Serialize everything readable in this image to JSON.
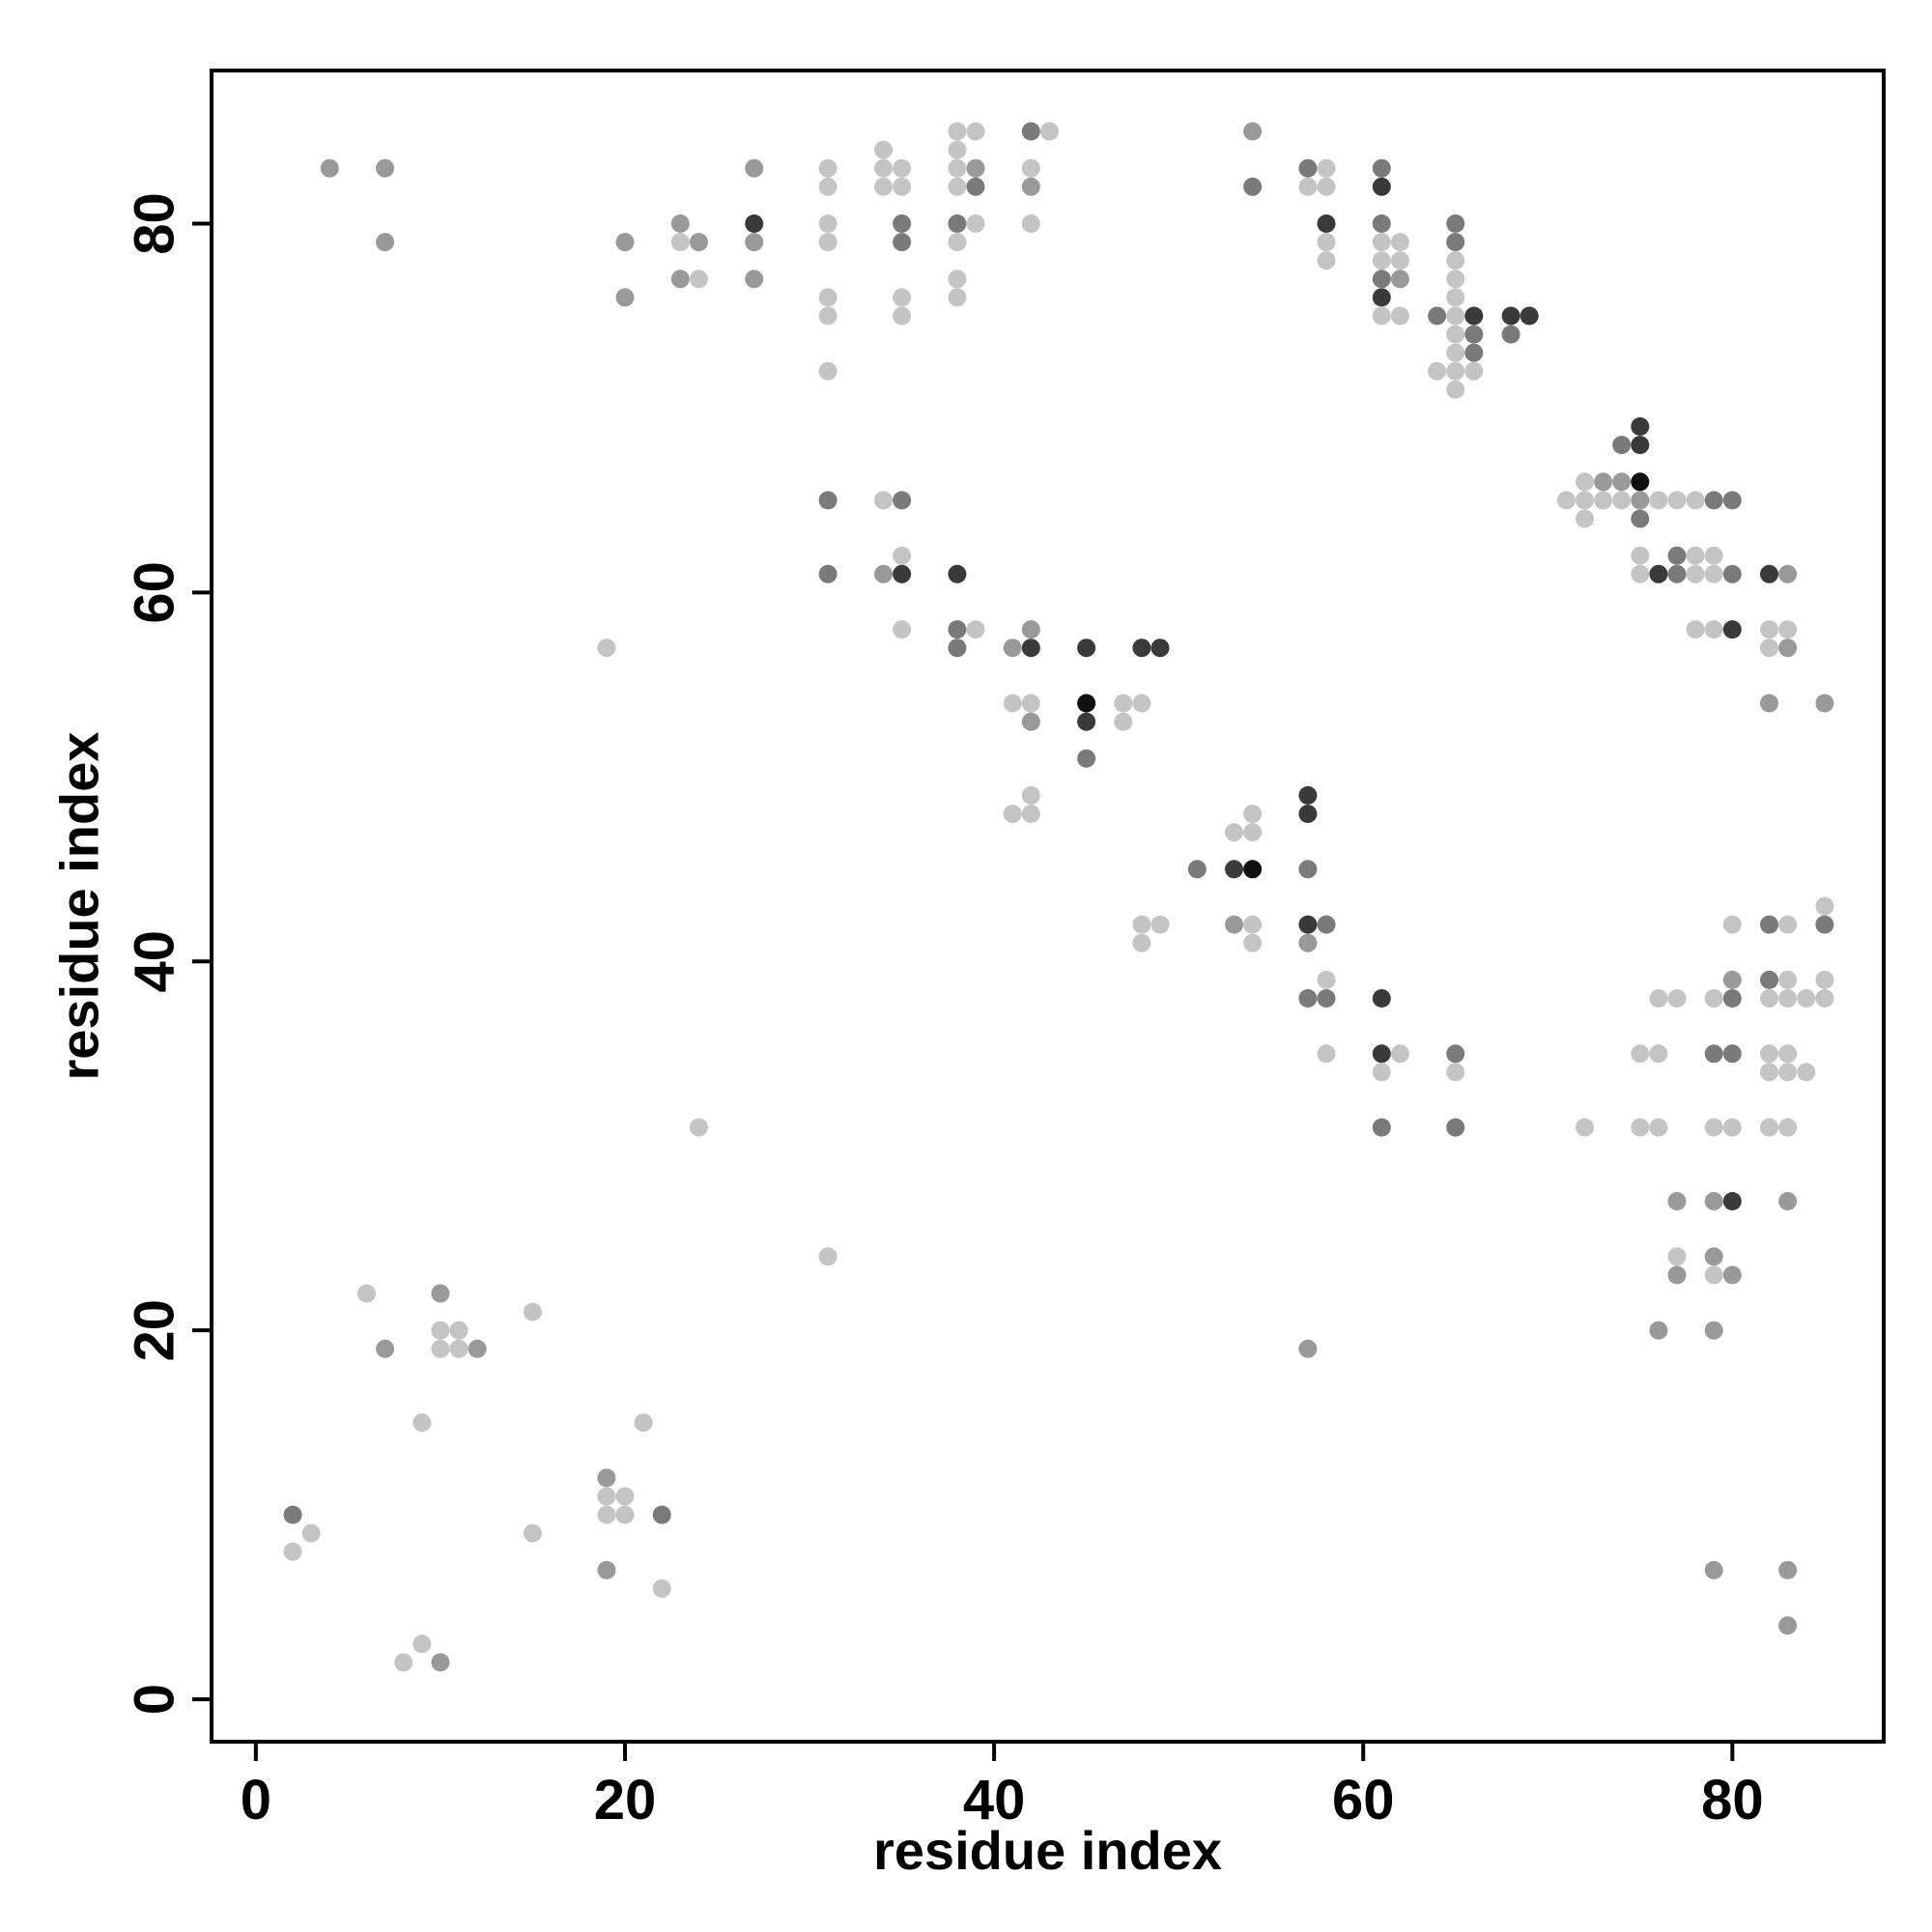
{
  "chart_data": {
    "type": "scatter",
    "title": "",
    "xlabel": "residue index",
    "ylabel": "residue index",
    "xlim": [
      -2.4,
      88.2
    ],
    "ylim": [
      -2.3,
      88.3
    ],
    "xticks": [
      0,
      20,
      40,
      60,
      80
    ],
    "yticks": [
      0,
      20,
      40,
      60,
      80
    ],
    "grid": false,
    "legend": "none",
    "color_scale": {
      "1": "#c4c4c4",
      "2": "#999999",
      "3": "#7a7a7a",
      "4": "#3a3a3a",
      "5": "#0f0f0f"
    },
    "points": [
      [
        4,
        83,
        2
      ],
      [
        7,
        83,
        2
      ],
      [
        7,
        79,
        2
      ],
      [
        2,
        10,
        3
      ],
      [
        2,
        8,
        1
      ],
      [
        3,
        9,
        1
      ],
      [
        6,
        22,
        1
      ],
      [
        7,
        19,
        2
      ],
      [
        8,
        2,
        1
      ],
      [
        9,
        3,
        1
      ],
      [
        10,
        2,
        2
      ],
      [
        9,
        15,
        1
      ],
      [
        10,
        22,
        2
      ],
      [
        10,
        20,
        1
      ],
      [
        11,
        20,
        1
      ],
      [
        10,
        19,
        1
      ],
      [
        11,
        19,
        1
      ],
      [
        12,
        19,
        2
      ],
      [
        15,
        21,
        1
      ],
      [
        15,
        9,
        1
      ],
      [
        19,
        12,
        2
      ],
      [
        19,
        11,
        1
      ],
      [
        20,
        11,
        1
      ],
      [
        19,
        10,
        1
      ],
      [
        20,
        10,
        1
      ],
      [
        22,
        10,
        3
      ],
      [
        19,
        7,
        2
      ],
      [
        21,
        15,
        1
      ],
      [
        22,
        6,
        1
      ],
      [
        19,
        57,
        1
      ],
      [
        24,
        31,
        1
      ],
      [
        20,
        79,
        2
      ],
      [
        20,
        76,
        2
      ],
      [
        23,
        80,
        2
      ],
      [
        23,
        79,
        1
      ],
      [
        24,
        79,
        2
      ],
      [
        23,
        77,
        2
      ],
      [
        24,
        77,
        1
      ],
      [
        27,
        83,
        2
      ],
      [
        27,
        80,
        4
      ],
      [
        27,
        79,
        2
      ],
      [
        27,
        77,
        2
      ],
      [
        31,
        83,
        1
      ],
      [
        31,
        82,
        1
      ],
      [
        31,
        80,
        1
      ],
      [
        31,
        79,
        1
      ],
      [
        31,
        76,
        1
      ],
      [
        31,
        75,
        1
      ],
      [
        31,
        72,
        1
      ],
      [
        31,
        65,
        3
      ],
      [
        31,
        61,
        3
      ],
      [
        31,
        24,
        1
      ],
      [
        34,
        84,
        1
      ],
      [
        34,
        83,
        1
      ],
      [
        35,
        83,
        1
      ],
      [
        34,
        82,
        1
      ],
      [
        35,
        82,
        1
      ],
      [
        35,
        80,
        3
      ],
      [
        35,
        79,
        3
      ],
      [
        35,
        76,
        1
      ],
      [
        35,
        75,
        1
      ],
      [
        34,
        65,
        1
      ],
      [
        35,
        65,
        3
      ],
      [
        35,
        62,
        1
      ],
      [
        34,
        61,
        2
      ],
      [
        35,
        61,
        4
      ],
      [
        35,
        58,
        1
      ],
      [
        38,
        85,
        1
      ],
      [
        39,
        85,
        1
      ],
      [
        38,
        84,
        1
      ],
      [
        38,
        83,
        1
      ],
      [
        39,
        83,
        2
      ],
      [
        38,
        82,
        1
      ],
      [
        39,
        82,
        3
      ],
      [
        38,
        80,
        3
      ],
      [
        39,
        80,
        1
      ],
      [
        38,
        79,
        1
      ],
      [
        38,
        77,
        1
      ],
      [
        38,
        76,
        1
      ],
      [
        38,
        61,
        4
      ],
      [
        38,
        58,
        3
      ],
      [
        39,
        58,
        1
      ],
      [
        38,
        57,
        3
      ],
      [
        42,
        85,
        3
      ],
      [
        43,
        85,
        1
      ],
      [
        42,
        83,
        1
      ],
      [
        42,
        82,
        2
      ],
      [
        42,
        80,
        1
      ],
      [
        41,
        57,
        2
      ],
      [
        42,
        58,
        2
      ],
      [
        42,
        57,
        4
      ],
      [
        41,
        54,
        1
      ],
      [
        42,
        54,
        1
      ],
      [
        42,
        53,
        2
      ],
      [
        42,
        49,
        1
      ],
      [
        41,
        48,
        1
      ],
      [
        42,
        48,
        1
      ],
      [
        45,
        57,
        4
      ],
      [
        45,
        54,
        5
      ],
      [
        45,
        53,
        4
      ],
      [
        45,
        51,
        3
      ],
      [
        47,
        54,
        1
      ],
      [
        48,
        54,
        1
      ],
      [
        47,
        53,
        1
      ],
      [
        48,
        57,
        4
      ],
      [
        49,
        57,
        4
      ],
      [
        48,
        42,
        1
      ],
      [
        49,
        42,
        1
      ],
      [
        48,
        41,
        1
      ],
      [
        51,
        45,
        3
      ],
      [
        53,
        45,
        4
      ],
      [
        54,
        45,
        5
      ],
      [
        53,
        47,
        1
      ],
      [
        54,
        47,
        1
      ],
      [
        54,
        48,
        1
      ],
      [
        53,
        42,
        2
      ],
      [
        54,
        42,
        1
      ],
      [
        54,
        41,
        1
      ],
      [
        54,
        85,
        2
      ],
      [
        54,
        82,
        3
      ],
      [
        57,
        83,
        3
      ],
      [
        58,
        83,
        1
      ],
      [
        57,
        82,
        1
      ],
      [
        58,
        82,
        1
      ],
      [
        58,
        80,
        4
      ],
      [
        58,
        79,
        1
      ],
      [
        58,
        78,
        1
      ],
      [
        57,
        49,
        4
      ],
      [
        57,
        48,
        4
      ],
      [
        57,
        45,
        3
      ],
      [
        57,
        42,
        4
      ],
      [
        58,
        42,
        3
      ],
      [
        57,
        41,
        2
      ],
      [
        58,
        39,
        1
      ],
      [
        57,
        38,
        3
      ],
      [
        58,
        38,
        3
      ],
      [
        58,
        35,
        1
      ],
      [
        57,
        19,
        2
      ],
      [
        61,
        83,
        3
      ],
      [
        61,
        82,
        4
      ],
      [
        61,
        80,
        3
      ],
      [
        61,
        79,
        1
      ],
      [
        62,
        79,
        1
      ],
      [
        61,
        78,
        1
      ],
      [
        62,
        78,
        1
      ],
      [
        61,
        77,
        3
      ],
      [
        62,
        77,
        2
      ],
      [
        61,
        76,
        4
      ],
      [
        61,
        75,
        1
      ],
      [
        62,
        75,
        1
      ],
      [
        61,
        38,
        4
      ],
      [
        61,
        35,
        4
      ],
      [
        62,
        35,
        1
      ],
      [
        61,
        34,
        1
      ],
      [
        61,
        31,
        3
      ],
      [
        65,
        80,
        3
      ],
      [
        65,
        79,
        3
      ],
      [
        65,
        78,
        1
      ],
      [
        65,
        77,
        1
      ],
      [
        64,
        75,
        3
      ],
      [
        65,
        76,
        1
      ],
      [
        65,
        75,
        1
      ],
      [
        66,
        75,
        4
      ],
      [
        65,
        74,
        1
      ],
      [
        66,
        74,
        3
      ],
      [
        65,
        73,
        1
      ],
      [
        66,
        73,
        3
      ],
      [
        64,
        72,
        1
      ],
      [
        65,
        72,
        1
      ],
      [
        66,
        72,
        1
      ],
      [
        65,
        71,
        1
      ],
      [
        68,
        75,
        4
      ],
      [
        69,
        75,
        4
      ],
      [
        68,
        74,
        3
      ],
      [
        65,
        35,
        3
      ],
      [
        65,
        34,
        1
      ],
      [
        65,
        31,
        3
      ],
      [
        75,
        69,
        4
      ],
      [
        74,
        68,
        3
      ],
      [
        75,
        68,
        4
      ],
      [
        72,
        66,
        1
      ],
      [
        73,
        66,
        2
      ],
      [
        74,
        66,
        2
      ],
      [
        75,
        66,
        5
      ],
      [
        71,
        65,
        1
      ],
      [
        72,
        65,
        1
      ],
      [
        73,
        65,
        1
      ],
      [
        74,
        65,
        1
      ],
      [
        75,
        65,
        2
      ],
      [
        76,
        65,
        1
      ],
      [
        77,
        65,
        1
      ],
      [
        78,
        65,
        1
      ],
      [
        79,
        65,
        3
      ],
      [
        80,
        65,
        3
      ],
      [
        72,
        64,
        1
      ],
      [
        75,
        64,
        3
      ],
      [
        75,
        62,
        1
      ],
      [
        77,
        62,
        3
      ],
      [
        78,
        62,
        1
      ],
      [
        79,
        62,
        1
      ],
      [
        75,
        61,
        1
      ],
      [
        76,
        61,
        4
      ],
      [
        77,
        61,
        3
      ],
      [
        78,
        61,
        1
      ],
      [
        79,
        61,
        1
      ],
      [
        80,
        61,
        3
      ],
      [
        82,
        61,
        4
      ],
      [
        83,
        61,
        2
      ],
      [
        78,
        58,
        1
      ],
      [
        79,
        58,
        1
      ],
      [
        80,
        58,
        4
      ],
      [
        82,
        58,
        1
      ],
      [
        83,
        58,
        1
      ],
      [
        82,
        57,
        1
      ],
      [
        83,
        57,
        2
      ],
      [
        82,
        54,
        2
      ],
      [
        85,
        54,
        2
      ],
      [
        82,
        42,
        3
      ],
      [
        83,
        42,
        1
      ],
      [
        85,
        43,
        1
      ],
      [
        85,
        42,
        3
      ],
      [
        80,
        42,
        1
      ],
      [
        80,
        39,
        2
      ],
      [
        82,
        39,
        3
      ],
      [
        83,
        39,
        1
      ],
      [
        85,
        39,
        1
      ],
      [
        76,
        38,
        1
      ],
      [
        77,
        38,
        1
      ],
      [
        79,
        38,
        1
      ],
      [
        80,
        38,
        3
      ],
      [
        82,
        38,
        1
      ],
      [
        83,
        38,
        1
      ],
      [
        84,
        38,
        1
      ],
      [
        85,
        38,
        1
      ],
      [
        75,
        35,
        1
      ],
      [
        76,
        35,
        1
      ],
      [
        79,
        35,
        3
      ],
      [
        80,
        35,
        3
      ],
      [
        82,
        35,
        1
      ],
      [
        83,
        35,
        1
      ],
      [
        82,
        34,
        1
      ],
      [
        83,
        34,
        1
      ],
      [
        84,
        34,
        1
      ],
      [
        72,
        31,
        1
      ],
      [
        75,
        31,
        1
      ],
      [
        76,
        31,
        1
      ],
      [
        79,
        31,
        1
      ],
      [
        80,
        31,
        1
      ],
      [
        82,
        31,
        1
      ],
      [
        83,
        31,
        1
      ],
      [
        77,
        27,
        2
      ],
      [
        79,
        27,
        2
      ],
      [
        80,
        27,
        4
      ],
      [
        83,
        27,
        2
      ],
      [
        77,
        24,
        1
      ],
      [
        79,
        24,
        2
      ],
      [
        77,
        23,
        2
      ],
      [
        79,
        23,
        1
      ],
      [
        80,
        23,
        2
      ],
      [
        76,
        20,
        2
      ],
      [
        79,
        20,
        2
      ],
      [
        79,
        7,
        2
      ],
      [
        83,
        7,
        2
      ],
      [
        83,
        4,
        2
      ]
    ]
  }
}
